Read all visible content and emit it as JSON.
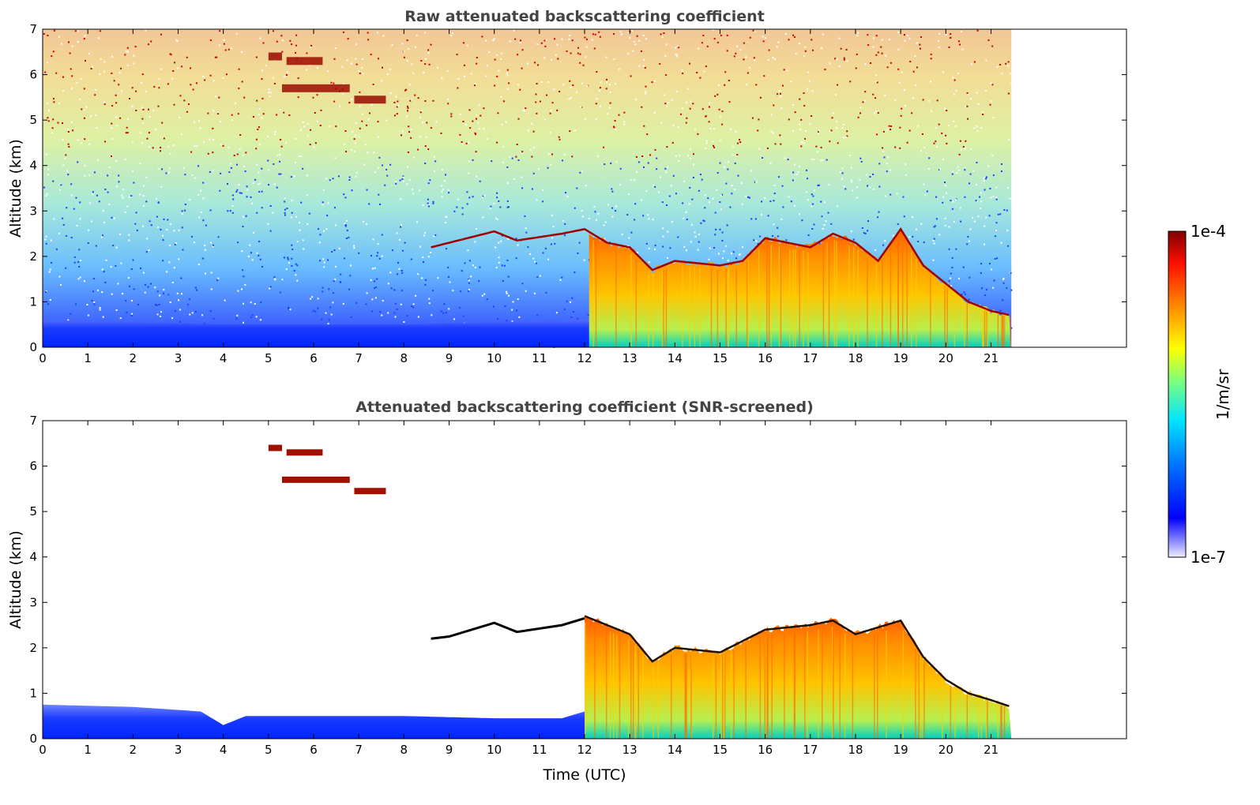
{
  "chart_data": [
    {
      "type": "heatmap",
      "title": "Raw attenuated backscattering coefficient",
      "xlabel": "",
      "ylabel": "Altitude (km)",
      "xlim": [
        0,
        24
      ],
      "ylim": [
        0,
        7
      ],
      "xticks": [
        "0",
        "1",
        "2",
        "3",
        "4",
        "5",
        "6",
        "7",
        "8",
        "9",
        "10",
        "11",
        "12",
        "13",
        "14",
        "15",
        "16",
        "17",
        "18",
        "19",
        "20",
        "21"
      ],
      "yticks": [
        "0",
        "1",
        "2",
        "3",
        "4",
        "5",
        "6",
        "7"
      ],
      "data_extent_hours": [
        0,
        21.45
      ],
      "cloud_top_km": [
        [
          8.6,
          2.2
        ],
        [
          9,
          2.3
        ],
        [
          10,
          2.55
        ],
        [
          10.5,
          2.35
        ],
        [
          11.5,
          2.5
        ],
        [
          12,
          2.6
        ],
        [
          12.5,
          2.3
        ],
        [
          13,
          2.2
        ],
        [
          13.5,
          1.7
        ],
        [
          14,
          1.9
        ],
        [
          15,
          1.8
        ],
        [
          15.5,
          1.9
        ],
        [
          16,
          2.4
        ],
        [
          17,
          2.2
        ],
        [
          17.5,
          2.5
        ],
        [
          18,
          2.3
        ],
        [
          18.5,
          1.9
        ],
        [
          19,
          2.6
        ],
        [
          19.5,
          1.8
        ],
        [
          20,
          1.4
        ],
        [
          20.5,
          1.0
        ],
        [
          21,
          0.8
        ],
        [
          21.45,
          0.7
        ]
      ],
      "aerosol_layer_top_km": [
        [
          0,
          0.6
        ],
        [
          4,
          0.5
        ],
        [
          8,
          0.5
        ],
        [
          12,
          0.6
        ],
        [
          21.45,
          0.7
        ]
      ],
      "elevated_layers_km": [
        [
          5.0,
          5.3,
          6.4
        ],
        [
          5.4,
          6.2,
          6.3
        ],
        [
          5.3,
          6.8,
          5.7
        ],
        [
          6.9,
          7.6,
          5.45
        ]
      ]
    },
    {
      "type": "heatmap",
      "title": "Attenuated backscattering coefficient (SNR-screened)",
      "xlabel": "Time (UTC)",
      "ylabel": "Altitude (km)",
      "xlim": [
        0,
        24
      ],
      "ylim": [
        0,
        7
      ],
      "xticks": [
        "0",
        "1",
        "2",
        "3",
        "4",
        "5",
        "6",
        "7",
        "8",
        "9",
        "10",
        "11",
        "12",
        "13",
        "14",
        "15",
        "16",
        "17",
        "18",
        "19",
        "20",
        "21"
      ],
      "yticks": [
        "0",
        "1",
        "2",
        "3",
        "4",
        "5",
        "6",
        "7"
      ],
      "data_extent_hours": [
        0,
        21.45
      ],
      "boundary_layer_top_km": [
        [
          0,
          0.75
        ],
        [
          2,
          0.7
        ],
        [
          3.5,
          0.6
        ],
        [
          4,
          0.3
        ],
        [
          4.5,
          0.5
        ],
        [
          6,
          0.5
        ],
        [
          8,
          0.5
        ],
        [
          10,
          0.45
        ],
        [
          11.5,
          0.45
        ],
        [
          12,
          0.6
        ]
      ],
      "cloud_top_km": [
        [
          12,
          2.7
        ],
        [
          13,
          2.3
        ],
        [
          13.5,
          1.7
        ],
        [
          14,
          2.0
        ],
        [
          15,
          1.9
        ],
        [
          16,
          2.4
        ],
        [
          17,
          2.5
        ],
        [
          17.5,
          2.6
        ],
        [
          18,
          2.3
        ],
        [
          19,
          2.6
        ],
        [
          19.5,
          1.8
        ],
        [
          20,
          1.3
        ],
        [
          20.5,
          1.0
        ],
        [
          21,
          0.85
        ],
        [
          21.45,
          0.7
        ]
      ]
    }
  ],
  "colorbar": {
    "label": "1/m/sr",
    "max_label": "1e-4",
    "min_label": "1e-7",
    "colormap": [
      "#eeeeff",
      "#7d7dff",
      "#0000ff",
      "#0080ff",
      "#00ffff",
      "#7dff7d",
      "#ffff00",
      "#ff8000",
      "#ff0000",
      "#800000"
    ]
  }
}
